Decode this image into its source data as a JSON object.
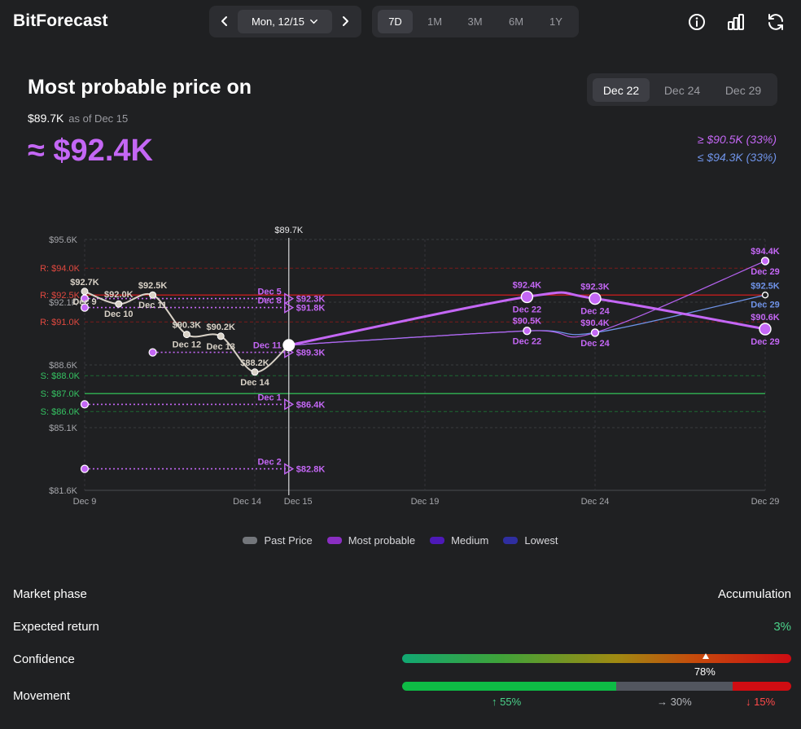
{
  "app": {
    "title": "BitForecast"
  },
  "date_picker": {
    "date": "Mon, 12/15"
  },
  "ranges": [
    {
      "label": "7D",
      "active": true
    },
    {
      "label": "1M",
      "active": false
    },
    {
      "label": "3M",
      "active": false
    },
    {
      "label": "6M",
      "active": false
    },
    {
      "label": "1Y",
      "active": false
    }
  ],
  "icons": [
    "info-icon",
    "bar-chart-icon",
    "refresh-icon",
    "chevron-left-icon",
    "chevron-right-icon",
    "chevron-down-icon"
  ],
  "header": {
    "title": "Most probable price on",
    "current_price": "$89.7K",
    "as_of": "as of Dec 15",
    "predicted": "≈ $92.4K",
    "band_high": "≥ $90.5K (33%)",
    "band_low": "≤ $94.3K (33%)"
  },
  "date_tabs": [
    {
      "label": "Dec 22",
      "active": true
    },
    {
      "label": "Dec 24",
      "active": false
    },
    {
      "label": "Dec 29",
      "active": false
    }
  ],
  "colors": {
    "accent": "#c467f5",
    "blue": "#6f93e8",
    "resistance": "#d42b2b",
    "support": "#2fb15b",
    "past": "#d9d2c7"
  },
  "chart_data": {
    "type": "line",
    "title": "",
    "xlabel": "",
    "ylabel": "",
    "now_label": "$89.7K",
    "x_ticks": [
      "Dec 9",
      "Dec 14",
      "Dec 15",
      "Dec 19",
      "Dec 24",
      "Dec 29"
    ],
    "y_ticks": [
      "$95.6K",
      "$92.1K",
      "$88.6K",
      "$85.1K",
      "$81.6K"
    ],
    "ylim": [
      81.6,
      95.6
    ],
    "resistance_levels": [
      {
        "label": "R: $94.0K",
        "value": 94.0
      },
      {
        "label": "R: $92.5K",
        "value": 92.5
      },
      {
        "label": "R: $91.0K",
        "value": 91.0
      }
    ],
    "support_levels": [
      {
        "label": "S: $88.0K",
        "value": 88.0
      },
      {
        "label": "S: $87.0K",
        "value": 87.0
      },
      {
        "label": "S: $86.0K",
        "value": 86.0
      }
    ],
    "series": [
      {
        "name": "Past Price",
        "points": [
          {
            "x": "Dec 9",
            "y": 92.7,
            "label": "$92.7K"
          },
          {
            "x": "Dec 10",
            "y": 92.0,
            "label": "$92.0K"
          },
          {
            "x": "Dec 11",
            "y": 92.5,
            "label": "$92.5K"
          },
          {
            "x": "Dec 12",
            "y": 90.3,
            "label": "$90.3K"
          },
          {
            "x": "Dec 13",
            "y": 90.2,
            "label": "$90.2K"
          },
          {
            "x": "Dec 14",
            "y": 88.2,
            "label": "$88.2K"
          },
          {
            "x": "Dec 15",
            "y": 89.7,
            "label": ""
          }
        ]
      },
      {
        "name": "Most probable",
        "points": [
          {
            "x": "Dec 15",
            "y": 89.7
          },
          {
            "x": "Dec 22",
            "y": 92.4,
            "label": "$92.4K"
          },
          {
            "x": "Dec 24",
            "y": 92.3,
            "label": "$92.3K"
          },
          {
            "x": "Dec 29",
            "y": 90.6,
            "label": "$90.6K"
          }
        ]
      },
      {
        "name": "Medium",
        "points": [
          {
            "x": "Dec 15",
            "y": 89.7
          },
          {
            "x": "Dec 22",
            "y": 90.5,
            "label": "$90.5K"
          },
          {
            "x": "Dec 24",
            "y": 90.4,
            "label": "$90.4K"
          },
          {
            "x": "Dec 29",
            "y": 94.4,
            "label": "$94.4K"
          }
        ]
      },
      {
        "name": "Lowest",
        "points": [
          {
            "x": "Dec 15",
            "y": 89.7
          },
          {
            "x": "Dec 22",
            "y": 90.5
          },
          {
            "x": "Dec 24",
            "y": 90.4
          },
          {
            "x": "Dec 29",
            "y": 92.5,
            "label": "$92.5K"
          }
        ]
      }
    ],
    "historic_predictions": [
      {
        "made": "Dec 9",
        "target": "Dec 5",
        "y": 92.3,
        "label": "$92.3K"
      },
      {
        "made": "Dec 9",
        "target": "Dec 8",
        "y": 91.8,
        "label": "$91.8K"
      },
      {
        "made": "Dec 11",
        "target": "Dec 11",
        "y": 89.3,
        "label": "$89.3K"
      },
      {
        "made": "Dec 9",
        "target": "Dec 1",
        "y": 86.4,
        "label": "$86.4K"
      },
      {
        "made": "Dec 9",
        "target": "Dec 2",
        "y": 82.8,
        "label": "$82.8K"
      }
    ],
    "legend": [
      "Past Price",
      "Most probable",
      "Medium",
      "Lowest"
    ]
  },
  "metrics": {
    "market_phase": {
      "label": "Market phase",
      "value": "Accumulation"
    },
    "expected_return": {
      "label": "Expected return",
      "value": "3%"
    },
    "confidence": {
      "label": "Confidence",
      "value": "78%",
      "fraction": 0.78
    },
    "movement": {
      "label": "Movement",
      "up": "↑ 55%",
      "flat": "→ 30%",
      "down": "↓ 15%",
      "up_fraction": 0.55,
      "flat_fraction": 0.3,
      "down_fraction": 0.15
    }
  }
}
